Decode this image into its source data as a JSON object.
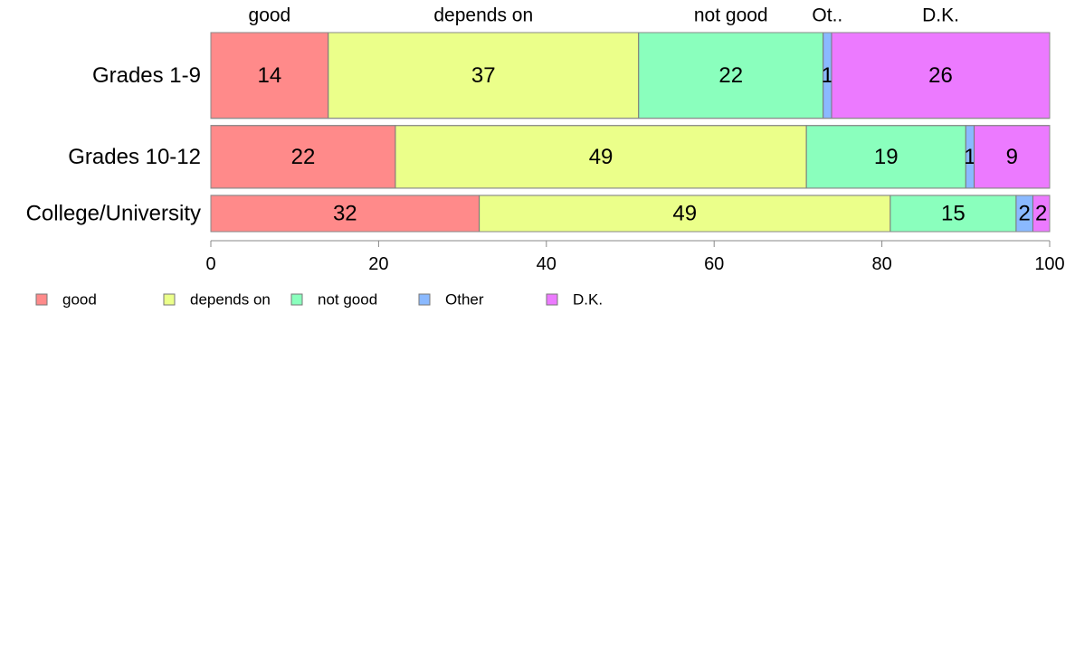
{
  "chart_data": {
    "type": "bar",
    "orientation": "horizontal",
    "stacked": true,
    "categories": [
      "Grades 1-9",
      "Grades 10-12",
      "College/University"
    ],
    "series": [
      {
        "name": "good",
        "values": [
          14,
          22,
          32
        ],
        "color": "#ff8a8a"
      },
      {
        "name": "depends on",
        "values": [
          37,
          49,
          49
        ],
        "color": "#ebff8a"
      },
      {
        "name": "not good",
        "values": [
          22,
          19,
          15
        ],
        "color": "#8affbd"
      },
      {
        "name": "Other",
        "values": [
          1,
          1,
          2
        ],
        "color": "#8ab9ff"
      },
      {
        "name": "D.K.",
        "values": [
          26,
          9,
          2
        ],
        "color": "#ec7aff"
      }
    ],
    "top_labels": [
      "good",
      "depends on",
      "not good",
      "Ot..",
      "D.K."
    ],
    "xlim": [
      0,
      100
    ],
    "xticks": [
      "0",
      "20",
      "40",
      "60",
      "80",
      "100"
    ],
    "bar_relative_heights": [
      26,
      19,
      11
    ],
    "legend_position": "bottom-left",
    "grid": false
  }
}
